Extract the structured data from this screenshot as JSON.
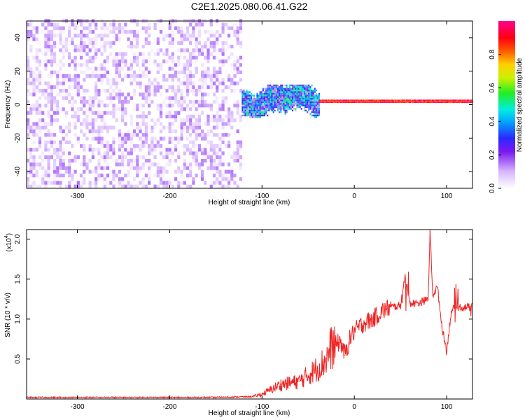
{
  "title": "C2E1.2025.080.06.41.G22",
  "chart_data": [
    {
      "type": "heatmap",
      "xlabel": "Height of straight line (km)",
      "ylabel": "Frequency (Hz)",
      "xlim": [
        -355,
        128
      ],
      "ylim": [
        -50,
        50
      ],
      "xticks": [
        -300,
        -200,
        -100,
        0,
        100
      ],
      "yticks": [
        -40,
        -20,
        0,
        20,
        40
      ],
      "colorbar": {
        "label": "Normalized spectral amplitude",
        "range": [
          0,
          1
        ],
        "ticks": [
          "0.0",
          "0.2",
          "0.4",
          "0.6",
          "0.8"
        ],
        "colormap": "rainbow (white → purple → blue → cyan → green → yellow → red → magenta)"
      },
      "regions": [
        {
          "x": [
            -355,
            -122
          ],
          "freq": [
            -50,
            50
          ],
          "amplitude_range": [
            0.0,
            0.15
          ],
          "description_note": "diffuse noise"
        },
        {
          "x": [
            -122,
            -38
          ],
          "freq": [
            -8,
            12
          ],
          "amplitude_range": [
            0.1,
            0.55
          ]
        },
        {
          "x": [
            -38,
            128
          ],
          "freq": [
            1,
            3
          ],
          "amplitude_range": [
            0.8,
            1.0
          ]
        }
      ]
    },
    {
      "type": "line",
      "xlabel": "Height of straight line (km)",
      "ylabel": "SNR (10 * v/v)",
      "y_multiplier": "(x10^4)",
      "y_multiplier_base": "(x10",
      "y_multiplier_exp": "4",
      "y_multiplier_close": ")",
      "xlim": [
        -355,
        128
      ],
      "ylim": [
        0,
        2.12
      ],
      "xticks": [
        -300,
        -200,
        -100,
        0,
        100
      ],
      "yticks": [
        "0.5",
        "1.0",
        "1.5",
        "2.0"
      ],
      "series": [
        {
          "color": "#ee2222",
          "x": [
            -355,
            -300,
            -250,
            -200,
            -150,
            -110,
            -100,
            -90,
            -80,
            -70,
            -60,
            -50,
            -40,
            -30,
            -25,
            -20,
            -15,
            -10,
            -5,
            0,
            10,
            20,
            30,
            40,
            50,
            55,
            60,
            70,
            80,
            82,
            85,
            90,
            95,
            100,
            105,
            110,
            120,
            128
          ],
          "y": [
            0.02,
            0.02,
            0.02,
            0.02,
            0.02,
            0.03,
            0.06,
            0.12,
            0.18,
            0.2,
            0.22,
            0.3,
            0.38,
            0.5,
            0.65,
            0.68,
            0.72,
            0.55,
            0.75,
            0.85,
            0.95,
            1.0,
            1.1,
            1.15,
            1.17,
            1.55,
            1.2,
            1.2,
            1.25,
            2.1,
            1.3,
            1.4,
            0.9,
            0.6,
            1.1,
            1.15,
            1.15,
            1.15
          ]
        }
      ]
    }
  ]
}
